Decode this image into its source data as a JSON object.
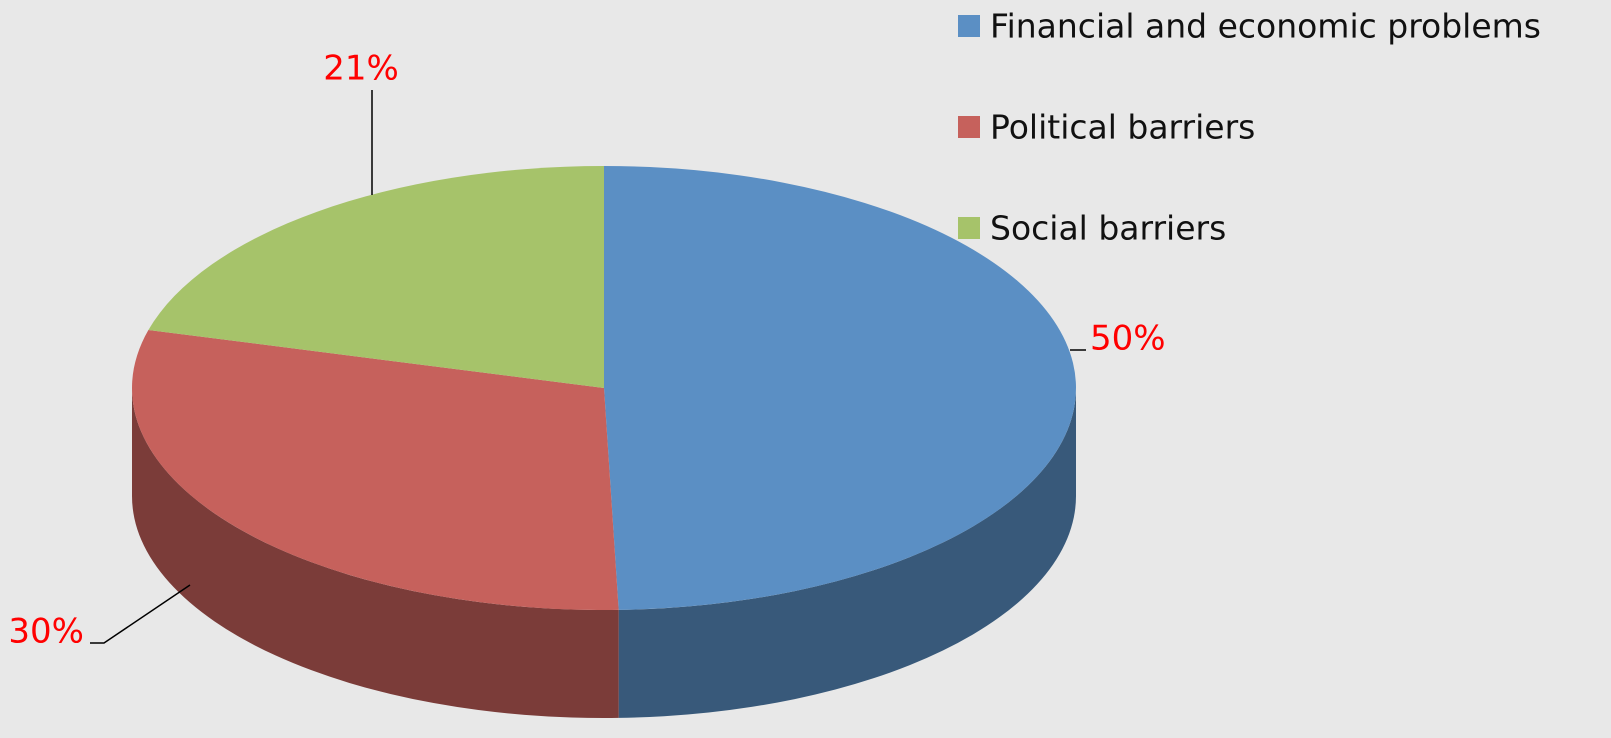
{
  "chart_data": {
    "type": "pie",
    "categories": [
      "Financial and economic problems",
      "Political barriers",
      "Social barriers"
    ],
    "values": [
      50,
      30,
      21
    ],
    "value_labels": [
      "50%",
      "30%",
      "21%"
    ],
    "colors": [
      "#5b8fc4",
      "#c6615c",
      "#a6c36a"
    ],
    "legend": "top-right"
  }
}
